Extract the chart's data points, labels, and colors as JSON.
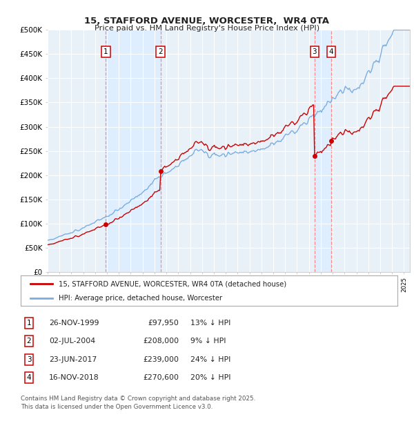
{
  "title": "15, STAFFORD AVENUE, WORCESTER,  WR4 0TA",
  "subtitle": "Price paid vs. HM Land Registry's House Price Index (HPI)",
  "transactions": [
    {
      "num": 1,
      "date": "26-NOV-1999",
      "price": 97950,
      "year": 1999.9,
      "hpi_pct": "13% ↓ HPI"
    },
    {
      "num": 2,
      "date": "02-JUL-2004",
      "price": 208000,
      "year": 2004.5,
      "hpi_pct": "9% ↓ HPI"
    },
    {
      "num": 3,
      "date": "23-JUN-2017",
      "price": 239000,
      "year": 2017.47,
      "hpi_pct": "24% ↓ HPI"
    },
    {
      "num": 4,
      "date": "16-NOV-2018",
      "price": 270600,
      "year": 2018.88,
      "hpi_pct": "20% ↓ HPI"
    }
  ],
  "ylim": [
    0,
    500000
  ],
  "xlim": [
    1995.0,
    2025.5
  ],
  "yticks": [
    0,
    50000,
    100000,
    150000,
    200000,
    250000,
    300000,
    350000,
    400000,
    450000,
    500000
  ],
  "ytick_labels": [
    "£0",
    "£50K",
    "£100K",
    "£150K",
    "£200K",
    "£250K",
    "£300K",
    "£350K",
    "£400K",
    "£450K",
    "£500K"
  ],
  "legend_line1": "15, STAFFORD AVENUE, WORCESTER, WR4 0TA (detached house)",
  "legend_line2": "HPI: Average price, detached house, Worcester",
  "footer1": "Contains HM Land Registry data © Crown copyright and database right 2025.",
  "footer2": "This data is licensed under the Open Government Licence v3.0.",
  "red_color": "#cc0000",
  "blue_color": "#7aade0",
  "shade_color": "#ddeeff",
  "bg_color": "#e8f0f8",
  "grid_color": "#ffffff",
  "vline_color": "#ff8888"
}
